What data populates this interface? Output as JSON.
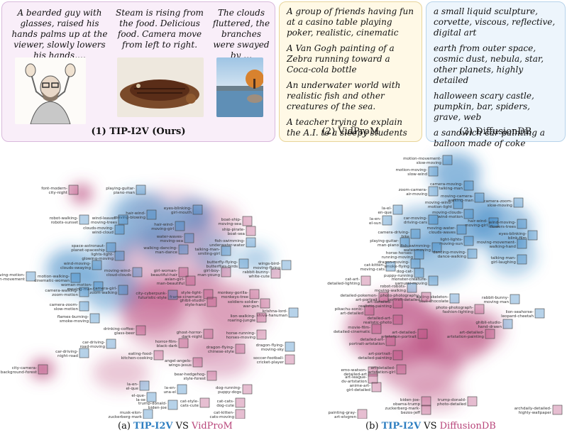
{
  "panels": {
    "tip": {
      "title": "(1) TIP-I2V (Ours)",
      "captions": [
        "A bearded guy with glasses, raised his hands palms up at the viewer, slowly lowers his hands,…",
        "Steam is rising from the food. Delicious food. Camera move from left to right.",
        "The clouds fluttered, the branches were swayed by …"
      ]
    },
    "vidprom": {
      "title": "(2) VidProM",
      "prompts": [
        "A group of friends having fun at a casino table playing poker, realistic, cinematic",
        "A Van Gogh painting of a Zebra running toward a Coca-cola bottle",
        "An underwater world with realistic fish and other creatures of the sea.",
        "A teacher trying to explain the A.I. to a sleepy students"
      ]
    },
    "diffusiondb": {
      "title": "(3) DiffusionDB",
      "prompts": [
        "a small liquid sculpture, corvette, viscous, reflective, digital art",
        "earth from outer space, cosmic dust, nebula, star, other planets, highly detailed",
        "halloween scary castle, pumpkin, bar, spiders, grave, web",
        "a sandwich car painting a balloon made of coke"
      ]
    }
  },
  "captions": {
    "a": {
      "prefix": "(a) ",
      "tip": "TIP-I2V",
      "vs": " VS ",
      "other": "VidProM"
    },
    "b": {
      "prefix": "(b) ",
      "tip": "TIP-I2V",
      "vs": " VS ",
      "other": "DiffusionDB"
    }
  },
  "colors": {
    "tip": "#2f7fc1",
    "other": "#b8457a"
  },
  "scatter_a_labels": [
    "font-modern-city-night",
    "playing-guitar-piano-man",
    "eyes-blinking-girl-mouth",
    "hair-wind-moving-blowing",
    "robot-walking-robots-sunset",
    "wind-leaves-moving-trees",
    "hair-wind-moving-girl",
    "boat-ship-moving-sea",
    "ship-pirate-boat-sea",
    "clouds-moving-wind-cloud",
    "water-waves-moving-sea",
    "fish-swimming-underwater-water",
    "space-astronaut-planet-spaceship",
    "walking-dancing-man-dance",
    "talking-man-smiling-girl",
    "lights-light-glowing-moving",
    "wind-moving-clouds-swaying",
    "moving-wind-cloud-clouds",
    "girl-woman-beautiful-hair",
    "girl-boy-man-young",
    "butterfly-flying-butterflies-birds",
    "wings-bird-moving-flying",
    "rabbit-bunny-white-cute",
    "moving-motion-man-movement",
    "motion-walking-cinematic-woman",
    "woman-motion-moving-man",
    "asian-girl-man-beautiful",
    "camera-walking-zoom-motion",
    "camera-girl-zoom-walking",
    "style-light-frame-cinematic",
    "ghibli-studio-style-hand",
    "camera-zoom-slow-motion",
    "city-cyberpunk-futuristic-style",
    "monkey-gorilla-monkeys-tree",
    "soldiers-soldier-war-gun",
    "krishna-lord-shiva-hanuman",
    "flames-burning-smoke-moving",
    "lion-walking-roaring-jungle",
    "drinking-coffee-glass-beer",
    "ghost-horror-dark-night",
    "horror-film-black-dark",
    "horse-running-horses-moving",
    "car-driving-road-moving",
    "dragon-flying-chinese-style",
    "dragon-flying-moving-sky",
    "car-driving-night-road",
    "eating-food-kitchen-cooking",
    "soccer-football-cricket-player",
    "angel-angels-wings-jesus",
    "city-camera-background-forest",
    "bear-hedgehog-style-forest",
    "la-en-el-que",
    "la-en-una-el",
    "el-que-la-se",
    "dog-running-puppy-dogs",
    "trump-donald-biden-joe",
    "cat-cats-dog-cute",
    "cat-style-cats-cute",
    "musk-elon-zuckerberg-mark",
    "cat-kitten-cats-moving"
  ],
  "scatter_b_labels": [
    "motion-movement-slow-moving",
    "motion-moving-slow-wind",
    "camera-moving-talking-man",
    "zoom-camera-air-moving",
    "moving-camera-walking-man",
    "moving-wind-motion-light",
    "camera-zoom-slow-moving",
    "la-el-en-que",
    "moving-clouds-wind-motion",
    "la-en-el-sun",
    "car-moving-driving-cars",
    "hair-wind-moving-girl",
    "wind-moving-flowers-trees",
    "eyes-blinking-blink-film",
    "camera-driving-bike",
    "moving-water-clouds-waves",
    "playing-guitar-man-piano",
    "moving-movement-walking-hand",
    "light-lights-moving-sun",
    "fish-swimming-water-moving",
    "talking-man-girl-laughing",
    "horse-horses-running-moving",
    "dancing-moving-dance-walking",
    "dragon-moving-smoke-flying",
    "cat-kitten-moving-cats",
    "dog-cat-puppy-running",
    "monster-creature-samurai-moving",
    "cat-art-detailed-lighting",
    "robot-robots-moving-walking",
    "eating-skeleton-skull-chocolate",
    "detailed-pokemon-art-portrait",
    "photo-photography-portrait-detailed",
    "rabbit-bunny-moving-man",
    "art-detailed-realistic-painting",
    "pikachu-sonic-art-detailed",
    "photo-photograph-fashion-lighting",
    "lion-seahorse-leopard-cheetah",
    "detailed-art-realistic-photo",
    "ghibli-studio-hand-drawn",
    "movie-film-detailed-cinematic",
    "art-detailed-artstation-portrait",
    "art-detailed-artstation-painting",
    "detailed-art-portrait-artstation",
    "art-portrait-detailed-painting",
    "emo-watson-detailed-art",
    "art-detailed-artstation-girl",
    "art-league-dv-artstation",
    "anime-art-girl-detailed",
    "biden-joe-obama-trump",
    "trump-donald-photo-detailed",
    "zuckerberg-mark-bezos-jeff",
    "painting-gray-art-elvgren",
    "archdaily-detailed-highly-wallpaper"
  ]
}
